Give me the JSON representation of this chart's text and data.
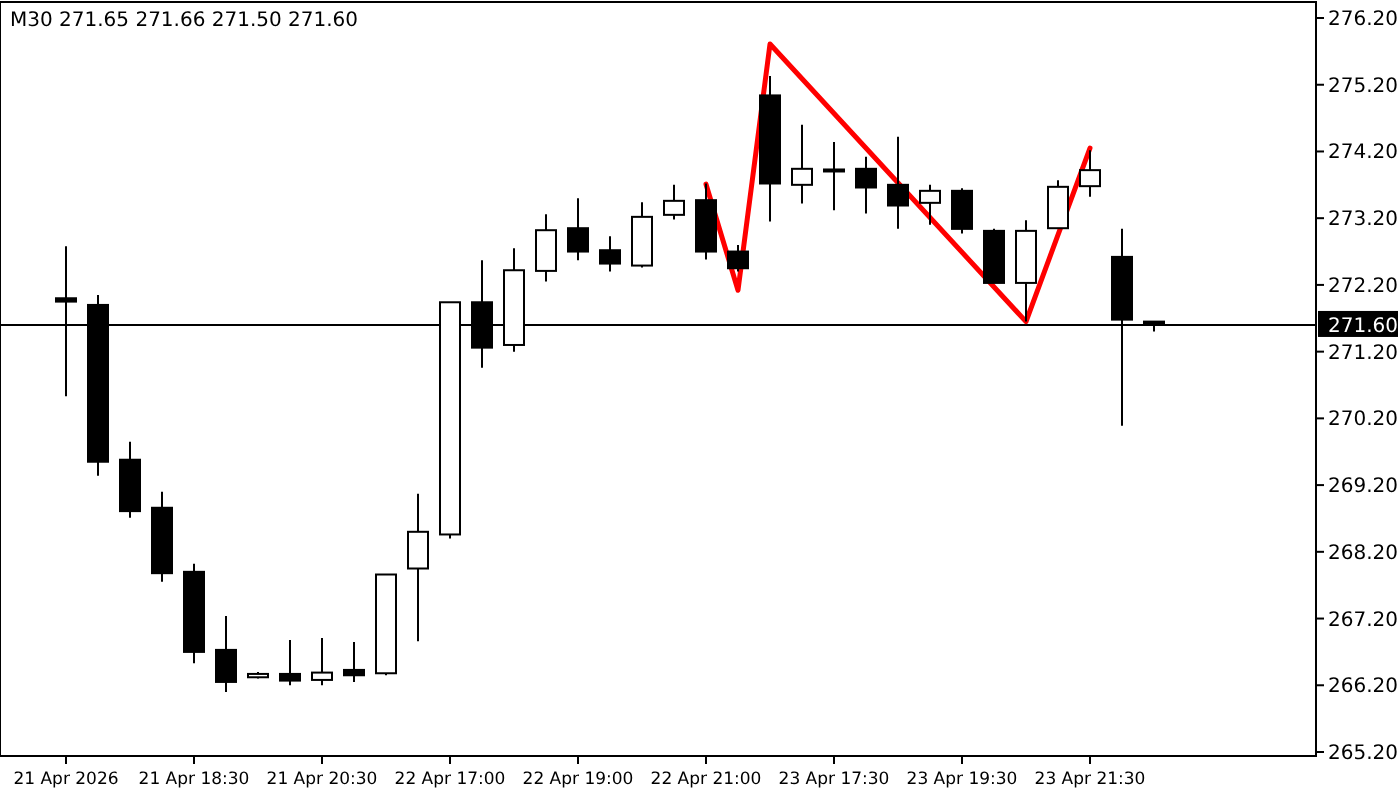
{
  "chart_data": {
    "type": "candlestick",
    "title": "M30 271.65 271.66 271.50 271.60",
    "categories": [
      "21 Apr 2026",
      null,
      null,
      null,
      "21 Apr 18:30",
      null,
      null,
      null,
      "21 Apr 20:30",
      null,
      null,
      null,
      "22 Apr 17:00",
      null,
      null,
      null,
      "22 Apr 19:00",
      null,
      null,
      null,
      "22 Apr 21:00",
      null,
      null,
      null,
      "23 Apr 17:30",
      null,
      null,
      null,
      "23 Apr 19:30",
      null,
      null,
      null,
      "23 Apr 21:30",
      null,
      null,
      null,
      null,
      null,
      null
    ],
    "ohlc": [
      [
        272.0,
        272.78,
        270.53,
        271.95
      ],
      [
        271.9,
        272.05,
        269.34,
        269.55
      ],
      [
        269.58,
        269.85,
        268.71,
        268.81
      ],
      [
        268.86,
        269.1,
        267.75,
        267.88
      ],
      [
        267.9,
        268.02,
        266.53,
        266.7
      ],
      [
        266.73,
        267.24,
        266.1,
        266.25
      ],
      [
        266.32,
        266.4,
        266.3,
        266.37
      ],
      [
        266.37,
        266.88,
        266.2,
        266.27
      ],
      [
        266.28,
        266.91,
        266.2,
        266.39
      ],
      [
        266.43,
        266.85,
        266.25,
        266.35
      ],
      [
        266.38,
        267.86,
        266.35,
        267.86
      ],
      [
        267.95,
        269.07,
        266.86,
        268.5
      ],
      [
        268.46,
        271.94,
        268.4,
        271.94
      ],
      [
        271.94,
        272.57,
        270.96,
        271.26
      ],
      [
        271.3,
        272.75,
        271.2,
        272.42
      ],
      [
        272.41,
        273.26,
        272.25,
        273.02
      ],
      [
        273.05,
        273.5,
        272.57,
        272.7
      ],
      [
        272.72,
        272.93,
        272.4,
        272.52
      ],
      [
        272.49,
        273.44,
        272.46,
        273.22
      ],
      [
        273.25,
        273.7,
        273.18,
        273.46
      ],
      [
        273.47,
        273.72,
        272.58,
        272.7
      ],
      [
        272.7,
        272.8,
        272.4,
        272.45
      ],
      [
        275.04,
        275.33,
        273.15,
        273.72
      ],
      [
        273.7,
        274.6,
        273.42,
        273.94
      ],
      [
        273.92,
        274.34,
        273.32,
        273.93
      ],
      [
        273.94,
        274.12,
        273.27,
        273.66
      ],
      [
        273.7,
        274.42,
        273.04,
        273.39
      ],
      [
        273.43,
        273.7,
        273.1,
        273.61
      ],
      [
        273.61,
        273.65,
        272.97,
        273.04
      ],
      [
        273.01,
        273.04,
        272.23,
        272.23
      ],
      [
        272.23,
        273.17,
        271.65,
        273.01
      ],
      [
        273.05,
        273.77,
        273.05,
        273.67
      ],
      [
        273.68,
        274.22,
        273.52,
        273.92
      ],
      [
        272.62,
        273.04,
        270.09,
        271.68
      ],
      [
        271.65,
        271.66,
        271.5,
        271.6
      ],
      null,
      null,
      null,
      null
    ],
    "series": [
      {
        "type": "line",
        "color": "#ff0000",
        "values": [
          null,
          null,
          null,
          null,
          null,
          null,
          null,
          null,
          null,
          null,
          null,
          null,
          null,
          null,
          null,
          null,
          null,
          null,
          null,
          null,
          273.71,
          272.12,
          275.81,
          null,
          null,
          null,
          null,
          null,
          null,
          null,
          271.65,
          null,
          274.25,
          null,
          null,
          null,
          null,
          null,
          null
        ]
      }
    ],
    "ylim": [
      265.14,
      276.44
    ],
    "yticks": [
      {
        "value": 265.2,
        "label": "265.20"
      },
      {
        "value": 266.2,
        "label": "266.20"
      },
      {
        "value": 267.2,
        "label": "267.20"
      },
      {
        "value": 268.2,
        "label": "268.20"
      },
      {
        "value": 269.2,
        "label": "269.20"
      },
      {
        "value": 270.2,
        "label": "270.20"
      },
      {
        "value": 271.2,
        "label": "271.20"
      },
      {
        "value": 272.2,
        "label": "272.20"
      },
      {
        "value": 273.2,
        "label": "273.20"
      },
      {
        "value": 274.2,
        "label": "274.20"
      },
      {
        "value": 275.2,
        "label": "275.20"
      },
      {
        "value": 276.2,
        "label": "276.20"
      }
    ],
    "ref_lines": [
      {
        "axis": "y",
        "value": 271.6,
        "label": "271.60",
        "color": "#000000"
      }
    ]
  }
}
